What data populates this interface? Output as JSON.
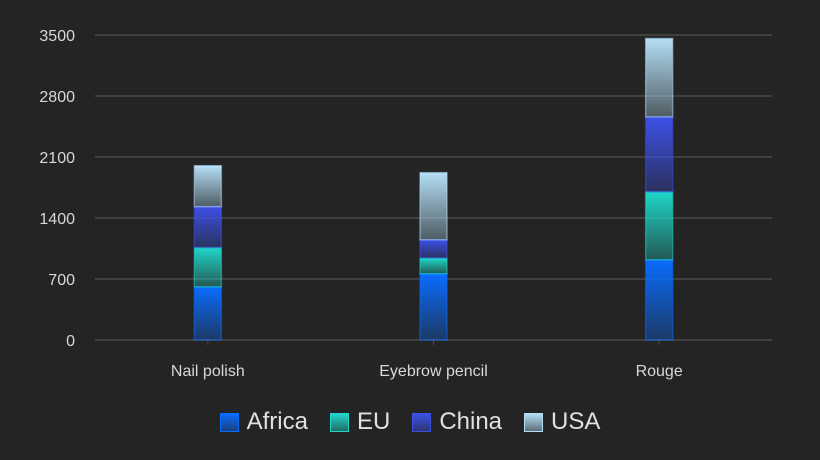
{
  "chart_data": {
    "type": "bar",
    "stacked": true,
    "categories": [
      "Nail polish",
      "Eyebrow pencil",
      "Rouge"
    ],
    "series": [
      {
        "name": "Africa",
        "values": [
          610,
          760,
          920
        ],
        "color": "#0a6cff"
      },
      {
        "name": "EU",
        "values": [
          450,
          180,
          780
        ],
        "color": "#1fd6c8"
      },
      {
        "name": "China",
        "values": [
          470,
          210,
          860
        ],
        "color": "#3c50e6"
      },
      {
        "name": "USA",
        "values": [
          470,
          770,
          900
        ],
        "color": "#b4def5"
      }
    ],
    "yticks": [
      0,
      700,
      1400,
      2100,
      2800,
      3500
    ],
    "ylim": [
      0,
      3500
    ],
    "grid": true,
    "legend_position": "bottom",
    "background": "#242424"
  }
}
